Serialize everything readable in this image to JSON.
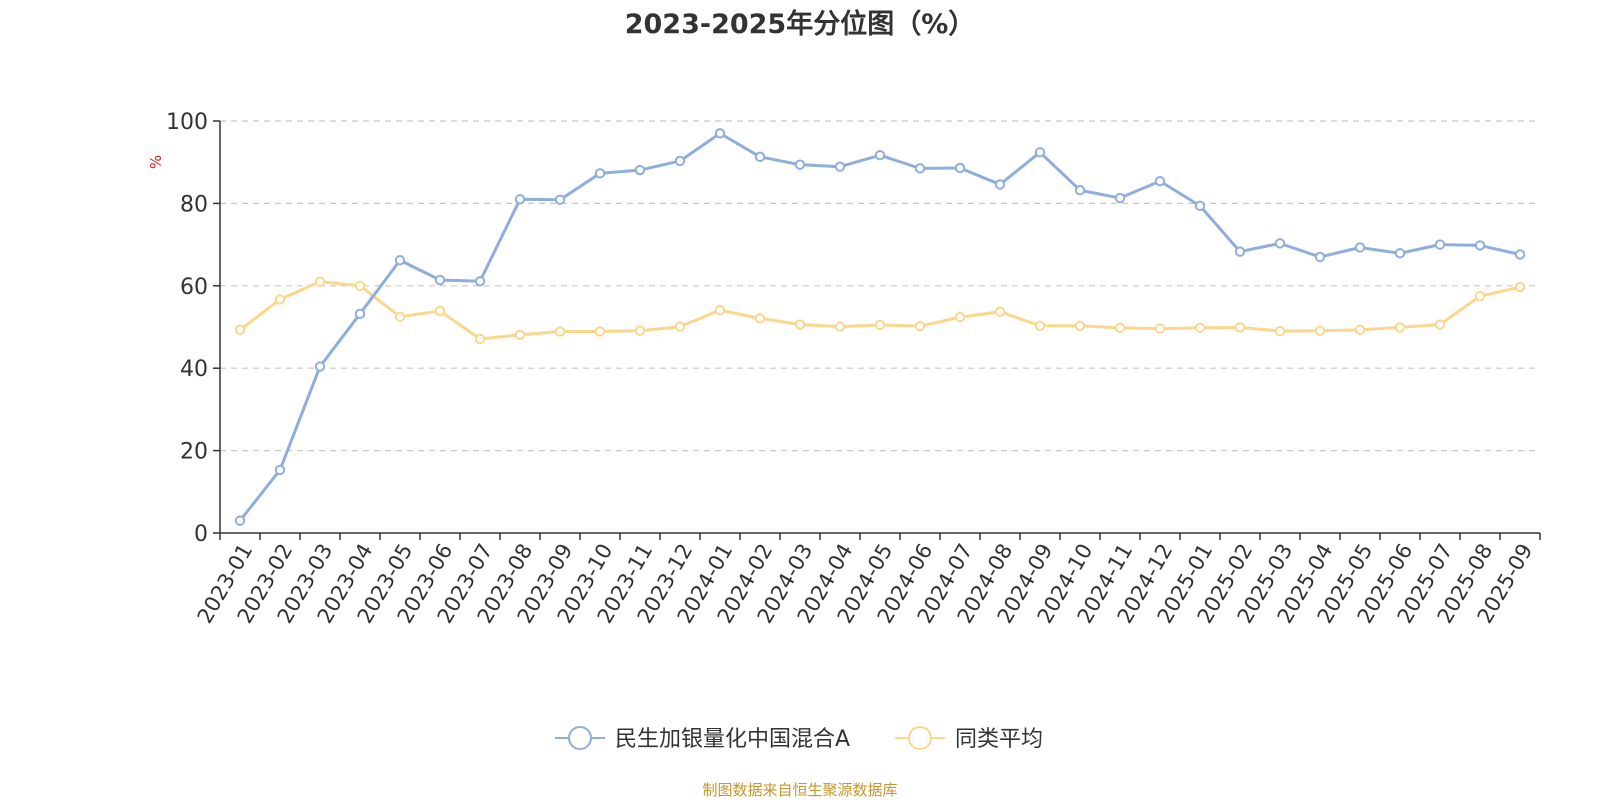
{
  "chart_data": {
    "type": "line",
    "title": "2023-2025年分位图（%）",
    "ylabel": "%",
    "xlabel": "",
    "ylim": [
      0,
      100
    ],
    "yticks": [
      0,
      20,
      40,
      60,
      80,
      100
    ],
    "grid": true,
    "legend_position": "bottom-center",
    "categories": [
      "2023-01",
      "2023-02",
      "2023-03",
      "2023-04",
      "2023-05",
      "2023-06",
      "2023-07",
      "2023-08",
      "2023-09",
      "2023-10",
      "2023-11",
      "2023-12",
      "2024-01",
      "2024-02",
      "2024-03",
      "2024-04",
      "2024-05",
      "2024-06",
      "2024-07",
      "2024-08",
      "2024-09",
      "2024-10",
      "2024-11",
      "2024-12",
      "2025-01",
      "2025-02",
      "2025-03",
      "2025-04",
      "2025-05",
      "2025-06",
      "2025-07",
      "2025-08",
      "2025-09"
    ],
    "series": [
      {
        "name": "民生加银量化中国混合A",
        "color": "#8eaedc",
        "values": [
          3.0,
          15.3,
          40.4,
          53.2,
          66.2,
          61.4,
          61.1,
          81.0,
          80.9,
          87.3,
          88.1,
          90.3,
          97.0,
          91.3,
          89.4,
          88.9,
          91.7,
          88.5,
          88.6,
          84.6,
          92.4,
          83.2,
          81.3,
          85.4,
          79.4,
          68.3,
          70.3,
          67.0,
          69.3,
          67.9,
          70.0,
          69.8,
          67.6
        ]
      },
      {
        "name": "同类平均",
        "color": "#fbd78e",
        "values": [
          49.3,
          56.7,
          61.0,
          60.0,
          52.5,
          53.9,
          47.1,
          48.1,
          48.9,
          48.9,
          49.1,
          50.1,
          54.1,
          52.1,
          50.6,
          50.1,
          50.5,
          50.2,
          52.4,
          53.7,
          50.3,
          50.3,
          49.8,
          49.6,
          49.8,
          49.9,
          49.0,
          49.1,
          49.3,
          49.9,
          50.6,
          57.5,
          59.7
        ]
      }
    ]
  },
  "source_note": "制图数据来自恒生聚源数据库"
}
